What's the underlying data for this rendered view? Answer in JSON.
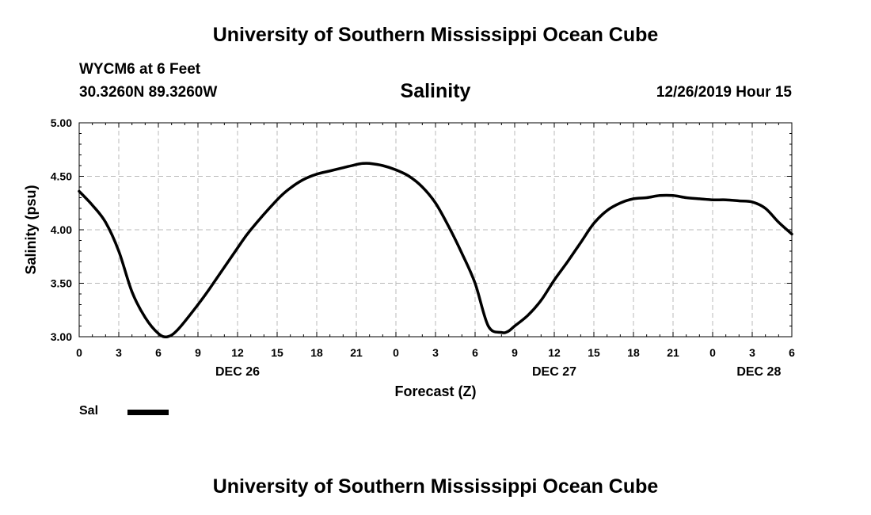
{
  "header": {
    "title": "University of Southern Mississippi Ocean Cube",
    "station": "WYCM6 at 6 Feet",
    "coordinates": "30.3260N 89.3260W",
    "datetime": "12/26/2019 Hour 15"
  },
  "footer": {
    "title": "University of Southern Mississippi Ocean Cube"
  },
  "legend": {
    "label": "Sal",
    "color": "#000000"
  },
  "chart_data": {
    "type": "line",
    "title": "Salinity",
    "xlabel": "Forecast (Z)",
    "ylabel": "Salinity (psu)",
    "x_unit": "forecast hours from DEC 26 00Z",
    "xlim": [
      0,
      54
    ],
    "ylim": [
      3.0,
      5.0
    ],
    "grid": true,
    "legend_position": "bottom-left",
    "y_ticks": [
      "3.00",
      "3.50",
      "4.00",
      "4.50",
      "5.00"
    ],
    "y_tick_values": [
      3.0,
      3.5,
      4.0,
      4.5,
      5.0
    ],
    "x_ticks": [
      "0",
      "3",
      "6",
      "9",
      "12",
      "15",
      "18",
      "21",
      "0",
      "3",
      "6",
      "9",
      "12",
      "15",
      "18",
      "21",
      "0",
      "3",
      "6"
    ],
    "x_tick_values": [
      0,
      3,
      6,
      9,
      12,
      15,
      18,
      21,
      24,
      27,
      30,
      33,
      36,
      39,
      42,
      45,
      48,
      51,
      54
    ],
    "date_labels": [
      {
        "label": "DEC 26",
        "x": 12
      },
      {
        "label": "DEC 27",
        "x": 36
      },
      {
        "label": "DEC 28",
        "x": 51.5
      }
    ],
    "series": [
      {
        "name": "Sal",
        "color": "#000000",
        "x": [
          0,
          1,
          2,
          3,
          4,
          5,
          6,
          6.7,
          7.5,
          9,
          10,
          12,
          13,
          15,
          16,
          17,
          18,
          19,
          20,
          21,
          21.5,
          22,
          23,
          24,
          25,
          26,
          27,
          28,
          29,
          30,
          31,
          32,
          32.5,
          33,
          34,
          35,
          36,
          37,
          38,
          39,
          40,
          41,
          42,
          43,
          44,
          45,
          46,
          47,
          48,
          49,
          50,
          51,
          52,
          53,
          54
        ],
        "y": [
          4.36,
          4.23,
          4.07,
          3.8,
          3.42,
          3.18,
          3.03,
          3.0,
          3.07,
          3.3,
          3.47,
          3.83,
          4.0,
          4.28,
          4.39,
          4.47,
          4.52,
          4.55,
          4.58,
          4.61,
          4.62,
          4.62,
          4.6,
          4.56,
          4.5,
          4.4,
          4.25,
          4.03,
          3.78,
          3.5,
          3.1,
          3.04,
          3.05,
          3.1,
          3.2,
          3.34,
          3.53,
          3.7,
          3.88,
          4.06,
          4.18,
          4.25,
          4.29,
          4.3,
          4.32,
          4.32,
          4.3,
          4.29,
          4.28,
          4.28,
          4.27,
          4.26,
          4.2,
          4.07,
          3.96
        ]
      }
    ]
  }
}
